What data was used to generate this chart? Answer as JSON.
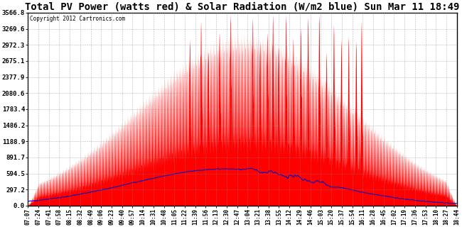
{
  "title": "Total PV Power (watts red) & Solar Radiation (W/m2 blue) Sun Mar 11 18:49",
  "copyright": "Copyright 2012 Cartronics.com",
  "background_color": "#ffffff",
  "plot_bg_color": "#ffffff",
  "grid_color": "#888888",
  "fill_color": "#ff0000",
  "line_color": "#0000cc",
  "title_fontsize": 10,
  "ytick_labels": [
    "0.0",
    "297.2",
    "594.5",
    "891.7",
    "1188.9",
    "1486.2",
    "1783.4",
    "2080.6",
    "2377.9",
    "2675.1",
    "2972.3",
    "3269.6",
    "3566.8"
  ],
  "ytick_values": [
    0.0,
    297.2,
    594.5,
    891.7,
    1188.9,
    1486.2,
    1783.4,
    2080.6,
    2377.9,
    2675.1,
    2972.3,
    3269.6,
    3566.8
  ],
  "ymax": 3566.8,
  "xtick_labels": [
    "07:07",
    "07:24",
    "07:41",
    "07:58",
    "08:15",
    "08:32",
    "08:49",
    "09:06",
    "09:23",
    "09:40",
    "09:57",
    "10:14",
    "10:31",
    "10:48",
    "11:05",
    "11:22",
    "11:39",
    "11:56",
    "12:13",
    "12:30",
    "12:47",
    "13:04",
    "13:21",
    "13:38",
    "13:55",
    "14:12",
    "14:29",
    "14:46",
    "15:03",
    "15:20",
    "15:37",
    "15:54",
    "16:11",
    "16:28",
    "16:45",
    "17:02",
    "17:19",
    "17:36",
    "17:53",
    "18:10",
    "18:27",
    "18:44"
  ]
}
